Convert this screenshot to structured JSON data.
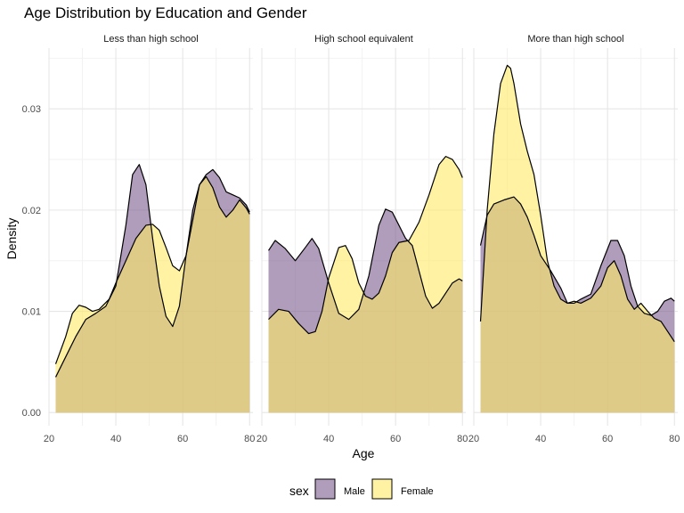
{
  "chart_data": {
    "type": "area",
    "title": "Age Distribution by Education and Gender",
    "xlabel": "Age",
    "ylabel": "Density",
    "xlim": [
      20,
      81
    ],
    "ylim": [
      -0.0013,
      0.036
    ],
    "x_ticks": [
      20,
      40,
      60,
      80
    ],
    "y_ticks": [
      0.0,
      0.01,
      0.02,
      0.03
    ],
    "y_tick_labels": [
      "0.00",
      "0.01",
      "0.02",
      "0.03"
    ],
    "grid": true,
    "legend": {
      "title": "sex",
      "position": "bottom",
      "entries": [
        {
          "label": "Male",
          "color": "#7b5a8d"
        },
        {
          "label": "Female",
          "color": "#ffeb66"
        }
      ]
    },
    "series_colors": {
      "Male": "#7b5a8d",
      "Female": "#ffeb66"
    },
    "panels": [
      {
        "label": "Less than high school",
        "series": [
          {
            "name": "Male",
            "x": [
              22,
              25,
              28,
              31,
              34,
              37,
              40,
              43,
              45,
              47,
              49,
              51,
              53,
              55,
              57,
              59,
              61,
              63,
              65,
              67,
              69,
              71,
              73,
              75,
              77,
              79,
              80
            ],
            "y": [
              0.0035,
              0.0055,
              0.0075,
              0.0092,
              0.0098,
              0.0105,
              0.0125,
              0.0185,
              0.0235,
              0.0245,
              0.0225,
              0.0172,
              0.0125,
              0.0095,
              0.0085,
              0.0105,
              0.0155,
              0.02,
              0.0225,
              0.0235,
              0.024,
              0.0232,
              0.0218,
              0.0215,
              0.0212,
              0.0205,
              0.0198
            ]
          },
          {
            "name": "Female",
            "x": [
              22,
              25,
              27,
              29,
              31,
              33,
              35,
              38,
              40,
              43,
              46,
              49,
              51,
              53,
              55,
              57,
              59,
              61,
              63,
              65,
              67,
              69,
              71,
              73,
              75,
              77,
              79,
              80
            ],
            "y": [
              0.0048,
              0.0075,
              0.0098,
              0.0106,
              0.0104,
              0.01,
              0.0102,
              0.0112,
              0.0128,
              0.015,
              0.0172,
              0.0185,
              0.0186,
              0.018,
              0.0163,
              0.0145,
              0.014,
              0.0155,
              0.019,
              0.0225,
              0.0233,
              0.0222,
              0.0203,
              0.0193,
              0.02,
              0.021,
              0.0202,
              0.0196
            ]
          }
        ]
      },
      {
        "label": "High school equivalent",
        "series": [
          {
            "name": "Male",
            "x": [
              22,
              24,
              27,
              30,
              33,
              35,
              37,
              40,
              43,
              46,
              49,
              52,
              55,
              57,
              59,
              61,
              63,
              65,
              67,
              69,
              71,
              73,
              75,
              77,
              79,
              80
            ],
            "y": [
              0.016,
              0.017,
              0.0162,
              0.015,
              0.0163,
              0.0172,
              0.0162,
              0.0128,
              0.0098,
              0.0092,
              0.0102,
              0.0135,
              0.0185,
              0.0201,
              0.0198,
              0.0185,
              0.0172,
              0.0165,
              0.014,
              0.0115,
              0.0103,
              0.0108,
              0.0118,
              0.0128,
              0.0132,
              0.013
            ]
          },
          {
            "name": "Female",
            "x": [
              22,
              25,
              28,
              31,
              34,
              36,
              38,
              40,
              43,
              45,
              47,
              49,
              51,
              53,
              55,
              57,
              59,
              61,
              64,
              67,
              70,
              73,
              75,
              77,
              79,
              80
            ],
            "y": [
              0.0092,
              0.0102,
              0.01,
              0.0088,
              0.0078,
              0.008,
              0.01,
              0.0133,
              0.0163,
              0.0165,
              0.0152,
              0.0128,
              0.0115,
              0.0112,
              0.0118,
              0.0135,
              0.0158,
              0.0168,
              0.017,
              0.0188,
              0.0215,
              0.0245,
              0.0253,
              0.025,
              0.024,
              0.0232
            ]
          }
        ]
      },
      {
        "label": "More than high school",
        "series": [
          {
            "name": "Male",
            "x": [
              22,
              24,
              26,
              29,
              32,
              34,
              36,
              38,
              40,
              43,
              46,
              48,
              50,
              52,
              55,
              58,
              61,
              63,
              65,
              67,
              69,
              71,
              73,
              75,
              77,
              79,
              80
            ],
            "y": [
              0.0165,
              0.0195,
              0.0206,
              0.021,
              0.0213,
              0.0206,
              0.0193,
              0.0175,
              0.0155,
              0.014,
              0.0123,
              0.0108,
              0.0108,
              0.0112,
              0.0117,
              0.0145,
              0.017,
              0.017,
              0.0155,
              0.0125,
              0.0105,
              0.0098,
              0.0096,
              0.01,
              0.011,
              0.0113,
              0.011
            ]
          },
          {
            "name": "Female",
            "x": [
              22,
              24,
              26,
              28,
              30,
              31,
              32,
              34,
              36,
              38,
              40,
              42,
              44,
              46,
              48,
              50,
              52,
              55,
              58,
              60,
              62,
              64,
              66,
              68,
              70,
              72,
              74,
              76,
              78,
              80
            ],
            "y": [
              0.009,
              0.02,
              0.0275,
              0.0325,
              0.0343,
              0.034,
              0.0325,
              0.0285,
              0.0258,
              0.0235,
              0.0195,
              0.015,
              0.0125,
              0.0112,
              0.0108,
              0.011,
              0.0108,
              0.0113,
              0.0125,
              0.0143,
              0.015,
              0.0135,
              0.0112,
              0.0102,
              0.0108,
              0.01,
              0.0093,
              0.009,
              0.008,
              0.007
            ]
          }
        ]
      }
    ]
  }
}
